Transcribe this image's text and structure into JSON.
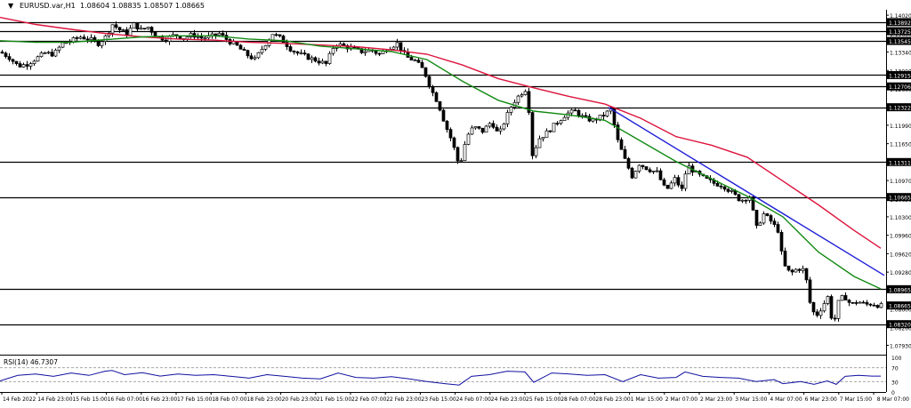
{
  "header": {
    "arrow_glyph": "▼",
    "symbol": "EURUSD.var,H1",
    "ohlc": "1.08604 1.08835 1.08507 1.08665"
  },
  "indicator": {
    "label": "RSI(14) 46.7307"
  },
  "chart_data": {
    "type": "candlestick",
    "symbol": "EURUSD.var",
    "timeframe": "H1",
    "colors": {
      "bg": "#ffffff",
      "candle": "#000000",
      "ma_fast": "#138a13",
      "ma_slow": "#dc143c",
      "trendline": "#1f1fd8",
      "level": "#000000",
      "current_price_tag": "#000000",
      "rsi": "#1010a0",
      "rsi_levels": "#9a9a9a"
    },
    "ylim": [
      1.0779,
      1.1412
    ],
    "y_ticks": [
      "1.14020",
      "1.13680",
      "1.13340",
      "1.13000",
      "1.12660",
      "1.12320",
      "1.11990",
      "1.11650",
      "1.11310",
      "1.10970",
      "1.10630",
      "1.10300",
      "1.09960",
      "1.09620",
      "1.09280",
      "1.08940",
      "1.08600",
      "1.08260",
      "1.07930"
    ],
    "x_ticks": [
      "14 Feb 2022",
      "14 Feb 23:00",
      "15 Feb 15:00",
      "16 Feb 07:00",
      "16 Feb 23:00",
      "17 Feb 15:00",
      "18 Feb 07:00",
      "18 Feb 23:00",
      "20 Feb 23:00",
      "21 Feb 15:00",
      "22 Feb 07:00",
      "22 Feb 23:00",
      "23 Feb 15:00",
      "24 Feb 07:00",
      "24 Feb 23:00",
      "25 Feb 15:00",
      "28 Feb 07:00",
      "28 Feb 23:00",
      "1 Mar 15:00",
      "2 Mar 07:00",
      "2 Mar 23:00",
      "3 Mar 15:00",
      "4 Mar 07:00",
      "6 Mar 23:00",
      "7 Mar 15:00",
      "8 Mar 07:00"
    ],
    "levels": [
      {
        "value": 1.13892,
        "label": "1.13892"
      },
      {
        "value": 1.13725,
        "label": "1.13725"
      },
      {
        "value": 1.13545,
        "label": "1.13545"
      },
      {
        "value": 1.12915,
        "label": "1.12915"
      },
      {
        "value": 1.12706,
        "label": "1.12706"
      },
      {
        "value": 1.12322,
        "label": "1.12322"
      },
      {
        "value": 1.11311,
        "label": "1.11311"
      },
      {
        "value": 1.10665,
        "label": "1.10665"
      },
      {
        "value": 1.08965,
        "label": "1.08965"
      },
      {
        "value": 1.0832,
        "label": "1.08320"
      }
    ],
    "current_price": {
      "value": 1.08665,
      "label": "1.08665"
    },
    "close_path": [
      [
        0,
        1.1334
      ],
      [
        10,
        1.1324
      ],
      [
        20,
        1.1308
      ],
      [
        30,
        1.1312
      ],
      [
        40,
        1.1322
      ],
      [
        50,
        1.1332
      ],
      [
        60,
        1.133
      ],
      [
        70,
        1.135
      ],
      [
        80,
        1.1355
      ],
      [
        90,
        1.1362
      ],
      [
        100,
        1.1358
      ],
      [
        110,
        1.135
      ],
      [
        118,
        1.1362
      ],
      [
        126,
        1.1385
      ],
      [
        134,
        1.1375
      ],
      [
        142,
        1.1368
      ],
      [
        150,
        1.1385
      ],
      [
        158,
        1.1375
      ],
      [
        166,
        1.138
      ],
      [
        176,
        1.1362
      ],
      [
        186,
        1.1358
      ],
      [
        196,
        1.1366
      ],
      [
        206,
        1.136
      ],
      [
        216,
        1.1366
      ],
      [
        226,
        1.136
      ],
      [
        236,
        1.1362
      ],
      [
        246,
        1.1368
      ],
      [
        256,
        1.1355
      ],
      [
        266,
        1.1345
      ],
      [
        276,
        1.133
      ],
      [
        286,
        1.132
      ],
      [
        296,
        1.1345
      ],
      [
        306,
        1.1368
      ],
      [
        316,
        1.1358
      ],
      [
        326,
        1.134
      ],
      [
        336,
        1.133
      ],
      [
        346,
        1.1324
      ],
      [
        356,
        1.1318
      ],
      [
        366,
        1.1312
      ],
      [
        376,
        1.135
      ],
      [
        386,
        1.1345
      ],
      [
        396,
        1.134
      ],
      [
        406,
        1.1335
      ],
      [
        416,
        1.1338
      ],
      [
        426,
        1.133
      ],
      [
        436,
        1.1342
      ],
      [
        446,
        1.135
      ],
      [
        456,
        1.1325
      ],
      [
        466,
        1.1318
      ],
      [
        476,
        1.13
      ],
      [
        484,
        1.1265
      ],
      [
        492,
        1.124
      ],
      [
        500,
        1.12
      ],
      [
        508,
        1.1168
      ],
      [
        516,
        1.1122
      ],
      [
        524,
        1.1178
      ],
      [
        532,
        1.1196
      ],
      [
        542,
        1.1188
      ],
      [
        552,
        1.1206
      ],
      [
        560,
        1.118
      ],
      [
        568,
        1.1212
      ],
      [
        576,
        1.124
      ],
      [
        584,
        1.1256
      ],
      [
        592,
        1.1268
      ],
      [
        598,
        1.1145
      ],
      [
        606,
        1.1175
      ],
      [
        616,
        1.1188
      ],
      [
        626,
        1.1205
      ],
      [
        636,
        1.122
      ],
      [
        646,
        1.1225
      ],
      [
        656,
        1.1212
      ],
      [
        666,
        1.1208
      ],
      [
        676,
        1.1215
      ],
      [
        686,
        1.1228
      ],
      [
        694,
        1.117
      ],
      [
        702,
        1.1135
      ],
      [
        710,
        1.1105
      ],
      [
        718,
        1.1128
      ],
      [
        728,
        1.1118
      ],
      [
        738,
        1.1112
      ],
      [
        748,
        1.1078
      ],
      [
        758,
        1.11
      ],
      [
        766,
        1.108
      ],
      [
        772,
        1.1125
      ],
      [
        782,
        1.111
      ],
      [
        792,
        1.11
      ],
      [
        802,
        1.1092
      ],
      [
        812,
        1.1088
      ],
      [
        822,
        1.1075
      ],
      [
        832,
        1.106
      ],
      [
        842,
        1.1068
      ],
      [
        850,
        1.101
      ],
      [
        858,
        1.1035
      ],
      [
        866,
        1.1022
      ],
      [
        874,
        1.1005
      ],
      [
        880,
        1.0942
      ],
      [
        888,
        1.0925
      ],
      [
        896,
        1.0935
      ],
      [
        904,
        1.0932
      ],
      [
        910,
        1.0872
      ],
      [
        916,
        1.0845
      ],
      [
        922,
        1.086
      ],
      [
        930,
        1.0882
      ],
      [
        936,
        1.0828
      ],
      [
        942,
        1.0872
      ],
      [
        948,
        1.0885
      ],
      [
        956,
        1.0868
      ],
      [
        964,
        1.0874
      ],
      [
        972,
        1.0868
      ],
      [
        980,
        1.087
      ],
      [
        988,
        1.0866
      ]
    ],
    "ma_fast_path": [
      [
        0,
        1.1355
      ],
      [
        40,
        1.1352
      ],
      [
        80,
        1.1352
      ],
      [
        120,
        1.1357
      ],
      [
        160,
        1.1362
      ],
      [
        200,
        1.1364
      ],
      [
        240,
        1.1364
      ],
      [
        280,
        1.1358
      ],
      [
        320,
        1.1355
      ],
      [
        360,
        1.1345
      ],
      [
        400,
        1.134
      ],
      [
        440,
        1.1335
      ],
      [
        480,
        1.132
      ],
      [
        520,
        1.128
      ],
      [
        560,
        1.1245
      ],
      [
        600,
        1.1225
      ],
      [
        640,
        1.1218
      ],
      [
        680,
        1.1208
      ],
      [
        720,
        1.117
      ],
      [
        760,
        1.1132
      ],
      [
        800,
        1.11
      ],
      [
        840,
        1.1068
      ],
      [
        880,
        1.103
      ],
      [
        920,
        1.0965
      ],
      [
        960,
        1.092
      ],
      [
        990,
        1.0897
      ]
    ],
    "ma_slow_path": [
      [
        0,
        1.1398
      ],
      [
        40,
        1.1385
      ],
      [
        80,
        1.1376
      ],
      [
        120,
        1.1368
      ],
      [
        160,
        1.1362
      ],
      [
        200,
        1.1358
      ],
      [
        240,
        1.1356
      ],
      [
        280,
        1.1352
      ],
      [
        320,
        1.135
      ],
      [
        360,
        1.1347
      ],
      [
        400,
        1.1344
      ],
      [
        440,
        1.1338
      ],
      [
        480,
        1.133
      ],
      [
        520,
        1.131
      ],
      [
        560,
        1.1285
      ],
      [
        600,
        1.1268
      ],
      [
        640,
        1.1252
      ],
      [
        680,
        1.1238
      ],
      [
        720,
        1.1212
      ],
      [
        760,
        1.1178
      ],
      [
        800,
        1.1162
      ],
      [
        840,
        1.114
      ],
      [
        880,
        1.1096
      ],
      [
        920,
        1.1052
      ],
      [
        960,
        1.1005
      ],
      [
        990,
        1.0972
      ]
    ],
    "trendline": [
      [
        684,
        1.1232
      ],
      [
        994,
        1.0922
      ]
    ],
    "rsi": {
      "ylim": [
        0,
        100
      ],
      "levels": [
        30,
        70
      ],
      "ticks": [
        "100",
        "70",
        "30",
        "0"
      ],
      "values": [
        [
          0,
          32
        ],
        [
          20,
          48
        ],
        [
          40,
          52
        ],
        [
          60,
          45
        ],
        [
          80,
          55
        ],
        [
          100,
          48
        ],
        [
          118,
          60
        ],
        [
          126,
          62
        ],
        [
          140,
          50
        ],
        [
          160,
          56
        ],
        [
          180,
          46
        ],
        [
          200,
          52
        ],
        [
          220,
          48
        ],
        [
          240,
          50
        ],
        [
          260,
          45
        ],
        [
          280,
          40
        ],
        [
          300,
          50
        ],
        [
          320,
          45
        ],
        [
          340,
          40
        ],
        [
          360,
          38
        ],
        [
          380,
          55
        ],
        [
          400,
          42
        ],
        [
          420,
          40
        ],
        [
          440,
          44
        ],
        [
          460,
          38
        ],
        [
          480,
          30
        ],
        [
          500,
          24
        ],
        [
          516,
          20
        ],
        [
          530,
          45
        ],
        [
          550,
          50
        ],
        [
          570,
          60
        ],
        [
          590,
          58
        ],
        [
          600,
          28
        ],
        [
          620,
          55
        ],
        [
          640,
          52
        ],
        [
          660,
          48
        ],
        [
          680,
          50
        ],
        [
          700,
          30
        ],
        [
          720,
          50
        ],
        [
          740,
          40
        ],
        [
          760,
          42
        ],
        [
          770,
          58
        ],
        [
          790,
          45
        ],
        [
          810,
          42
        ],
        [
          830,
          40
        ],
        [
          850,
          30
        ],
        [
          870,
          36
        ],
        [
          880,
          24
        ],
        [
          900,
          30
        ],
        [
          915,
          22
        ],
        [
          930,
          32
        ],
        [
          940,
          22
        ],
        [
          950,
          45
        ],
        [
          965,
          48
        ],
        [
          980,
          46
        ],
        [
          990,
          46
        ]
      ]
    }
  }
}
